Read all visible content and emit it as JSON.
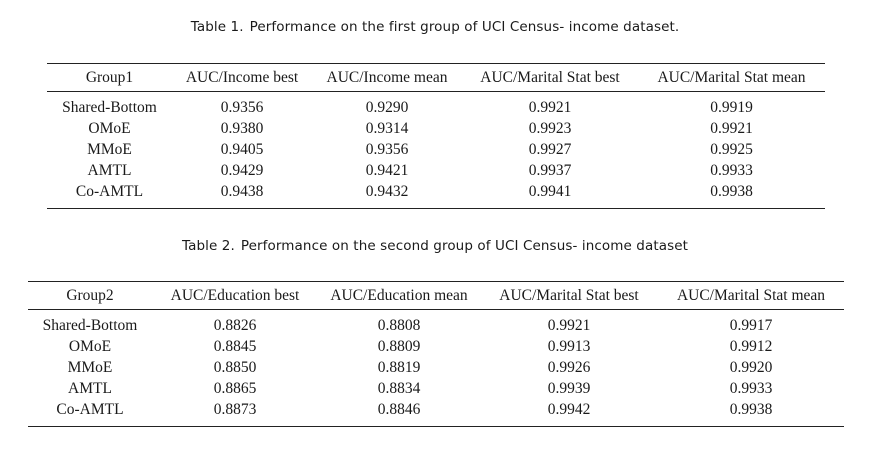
{
  "table1": {
    "caption_num": "Table 1.",
    "caption_text": "Performance on the first group of UCI Census- income dataset.",
    "headers": [
      "Group1",
      "AUC/Income best",
      "AUC/Income mean",
      "AUC/Marital Stat best",
      "AUC/Marital Stat mean"
    ],
    "rows": [
      [
        "Shared-Bottom",
        "0.9356",
        "0.9290",
        "0.9921",
        "0.9919"
      ],
      [
        "OMoE",
        "0.9380",
        "0.9314",
        "0.9923",
        "0.9921"
      ],
      [
        "MMoE",
        "0.9405",
        "0.9356",
        "0.9927",
        "0.9925"
      ],
      [
        "AMTL",
        "0.9429",
        "0.9421",
        "0.9937",
        "0.9933"
      ],
      [
        "Co-AMTL",
        "0.9438",
        "0.9432",
        "0.9941",
        "0.9938"
      ]
    ]
  },
  "table2": {
    "caption_num": "Table 2.",
    "caption_text": "Performance on the second group of UCI Census- income dataset",
    "headers": [
      "Group2",
      "AUC/Education best",
      "AUC/Education mean",
      "AUC/Marital Stat best",
      "AUC/Marital Stat mean"
    ],
    "rows": [
      [
        "Shared-Bottom",
        "0.8826",
        "0.8808",
        "0.9921",
        "0.9917"
      ],
      [
        "OMoE",
        "0.8845",
        "0.8809",
        "0.9913",
        "0.9912"
      ],
      [
        "MMoE",
        "0.8850",
        "0.8819",
        "0.9926",
        "0.9920"
      ],
      [
        "AMTL",
        "0.8865",
        "0.8834",
        "0.9939",
        "0.9933"
      ],
      [
        "Co-AMTL",
        "0.8873",
        "0.8846",
        "0.9942",
        "0.9938"
      ]
    ]
  }
}
